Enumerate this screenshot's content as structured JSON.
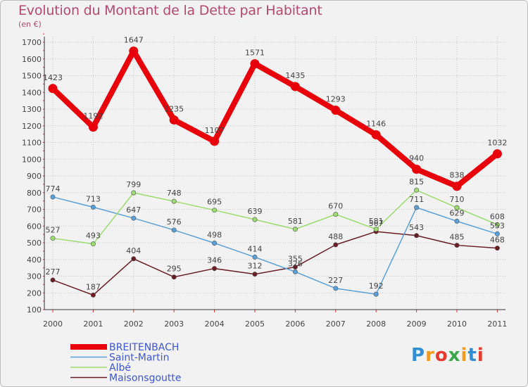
{
  "title": "Evolution du Montant de la Dette par Habitant",
  "subtitle": "(en €)",
  "logo": {
    "text": "Proxiti",
    "colors": [
      "#2f8fd0",
      "#f29a1e",
      "#e63a2e",
      "#3aa84a",
      "#f29a1e",
      "#2f8fd0",
      "#e63a2e"
    ]
  },
  "chart_data": {
    "type": "line",
    "categories": [
      "2000",
      "2001",
      "2002",
      "2003",
      "2004",
      "2005",
      "2006",
      "2007",
      "2008",
      "2009",
      "2010",
      "2011"
    ],
    "ylim": [
      100,
      1700
    ],
    "yticks": [
      100,
      200,
      300,
      400,
      500,
      600,
      700,
      800,
      900,
      1000,
      1100,
      1200,
      1300,
      1400,
      1500,
      1600,
      1700
    ],
    "grid": true,
    "legend_position": "bottom-left",
    "series": [
      {
        "name": "BREITENBACH",
        "color": "#e8000b",
        "values": [
          1423,
          1192,
          1647,
          1235,
          1107,
          1571,
          1435,
          1293,
          1146,
          940,
          838,
          1032
        ]
      },
      {
        "name": "Saint-Martin",
        "color": "#5aa0d8",
        "values": [
          774,
          713,
          647,
          576,
          498,
          414,
          326,
          227,
          192,
          711,
          629,
          553
        ]
      },
      {
        "name": "Albé",
        "color": "#9cdc6f",
        "values": [
          527,
          493,
          799,
          748,
          695,
          639,
          581,
          670,
          581,
          815,
          710,
          608
        ]
      },
      {
        "name": "Maisonsgoutte",
        "color": "#6b1d24",
        "values": [
          277,
          187,
          404,
          295,
          346,
          312,
          355,
          488,
          567,
          543,
          485,
          468
        ]
      }
    ]
  }
}
